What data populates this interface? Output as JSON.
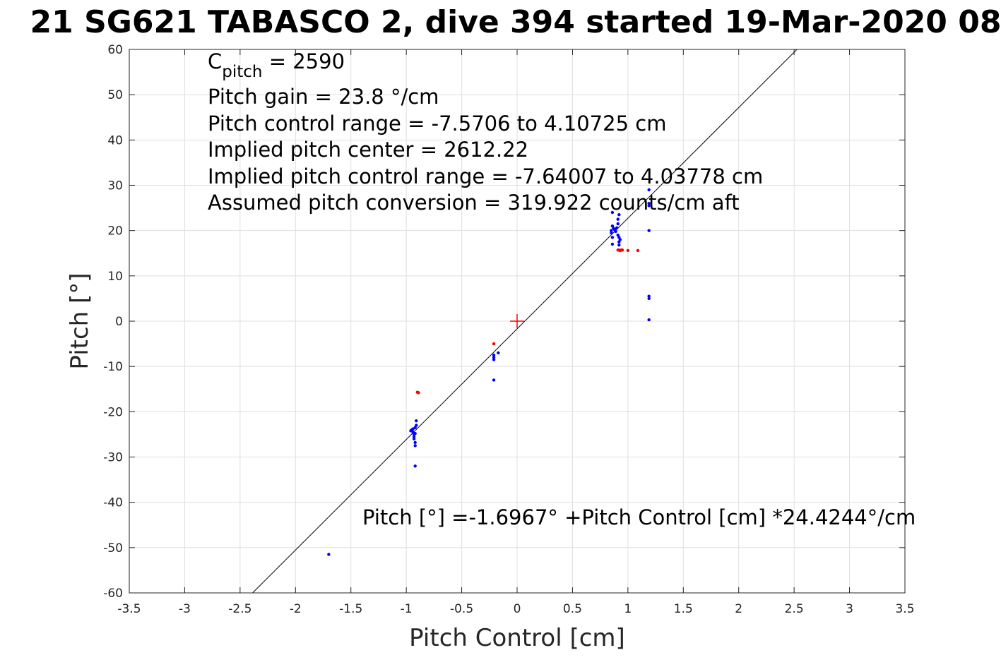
{
  "colors": {
    "background": "#ffffff",
    "fit_line": "#000000",
    "series_blue": "#0000ff",
    "series_red": "#ff0000",
    "center_marker": "#ff0000",
    "grid": "#dfdfdf"
  },
  "chart_data": {
    "type": "scatter",
    "title": "21 SG621 TABASCO 2, dive 394 started 19-Mar-2020 08",
    "xlabel": "Pitch Control [cm]",
    "ylabel": "Pitch [°]",
    "xlim": [
      -3.5,
      3.5
    ],
    "ylim": [
      -60,
      60
    ],
    "xticks": [
      "-3.5",
      "-3",
      "-2.5",
      "-2",
      "-1.5",
      "-1",
      "-0.5",
      "0",
      "0.5",
      "1",
      "1.5",
      "2",
      "2.5",
      "3",
      "3.5"
    ],
    "yticks": [
      "-60",
      "-50",
      "-40",
      "-30",
      "-20",
      "-10",
      "0",
      "10",
      "20",
      "30",
      "40",
      "50",
      "60"
    ],
    "grid": true,
    "annotations": {
      "c_pitch_prefix": "C",
      "c_pitch_sub": "pitch",
      "c_pitch_value": " = 2590",
      "pitch_gain": "Pitch gain = 23.8 °/cm",
      "pitch_control_range": "Pitch control range = -7.5706 to 4.10725 cm",
      "implied_center": "Implied pitch center = 2612.22",
      "implied_range": "Implied pitch control range = -7.64007 to 4.03778 cm",
      "assumed_conversion": "Assumed pitch conversion = 319.922 counts/cm aft",
      "fit_equation": "Pitch [°] =-1.6967° +Pitch Control [cm] *24.4244°/cm"
    },
    "fit": {
      "intercept": -1.6967,
      "slope": 24.4244
    },
    "center_marker": {
      "x": 0,
      "y": 0
    },
    "series": [
      {
        "color": "#0000ff",
        "points": [
          [
            -1.7,
            -51.5
          ],
          [
            -0.95,
            -24.0
          ],
          [
            -0.94,
            -24.5
          ],
          [
            -0.93,
            -25.0
          ],
          [
            -0.92,
            -23.5
          ],
          [
            -0.93,
            -26.0
          ],
          [
            -0.92,
            -27.5
          ],
          [
            -0.92,
            -32.0
          ],
          [
            -0.91,
            -22.0
          ],
          [
            -0.96,
            -24.2
          ],
          [
            -0.94,
            -23.8
          ],
          [
            -0.92,
            -24.8
          ],
          [
            -0.93,
            -25.5
          ],
          [
            -0.92,
            -26.8
          ],
          [
            -0.91,
            -23.0
          ],
          [
            -0.21,
            -7.5
          ],
          [
            -0.21,
            -8.0
          ],
          [
            -0.21,
            -8.5
          ],
          [
            -0.21,
            -13.0
          ],
          [
            -0.17,
            -7.0
          ],
          [
            0.85,
            20.0
          ],
          [
            0.86,
            21.0
          ],
          [
            0.85,
            19.5
          ],
          [
            0.86,
            18.5
          ],
          [
            0.86,
            17.0
          ],
          [
            0.86,
            24.0
          ],
          [
            0.87,
            20.5
          ],
          [
            0.88,
            20.2
          ],
          [
            0.89,
            19.8
          ],
          [
            0.9,
            20.6
          ],
          [
            0.91,
            21.5
          ],
          [
            0.91,
            22.5
          ],
          [
            0.92,
            23.5
          ],
          [
            0.91,
            19.0
          ],
          [
            0.92,
            18.5
          ],
          [
            0.92,
            17.5
          ],
          [
            0.92,
            16.8
          ],
          [
            0.93,
            18.0
          ],
          [
            1.19,
            29.0
          ],
          [
            1.19,
            26.0
          ],
          [
            1.19,
            25.5
          ],
          [
            1.19,
            20.0
          ],
          [
            1.19,
            5.5
          ],
          [
            1.19,
            5.0
          ],
          [
            1.19,
            0.3
          ]
        ]
      },
      {
        "color": "#ff0000",
        "points": [
          [
            -0.9,
            -15.7
          ],
          [
            -0.89,
            -15.8
          ],
          [
            -0.21,
            -5.0
          ],
          [
            0.91,
            15.7
          ],
          [
            0.92,
            15.7
          ],
          [
            0.93,
            15.6
          ],
          [
            0.94,
            15.7
          ],
          [
            0.95,
            15.7
          ],
          [
            1.0,
            15.6
          ],
          [
            1.09,
            15.6
          ]
        ]
      }
    ]
  }
}
